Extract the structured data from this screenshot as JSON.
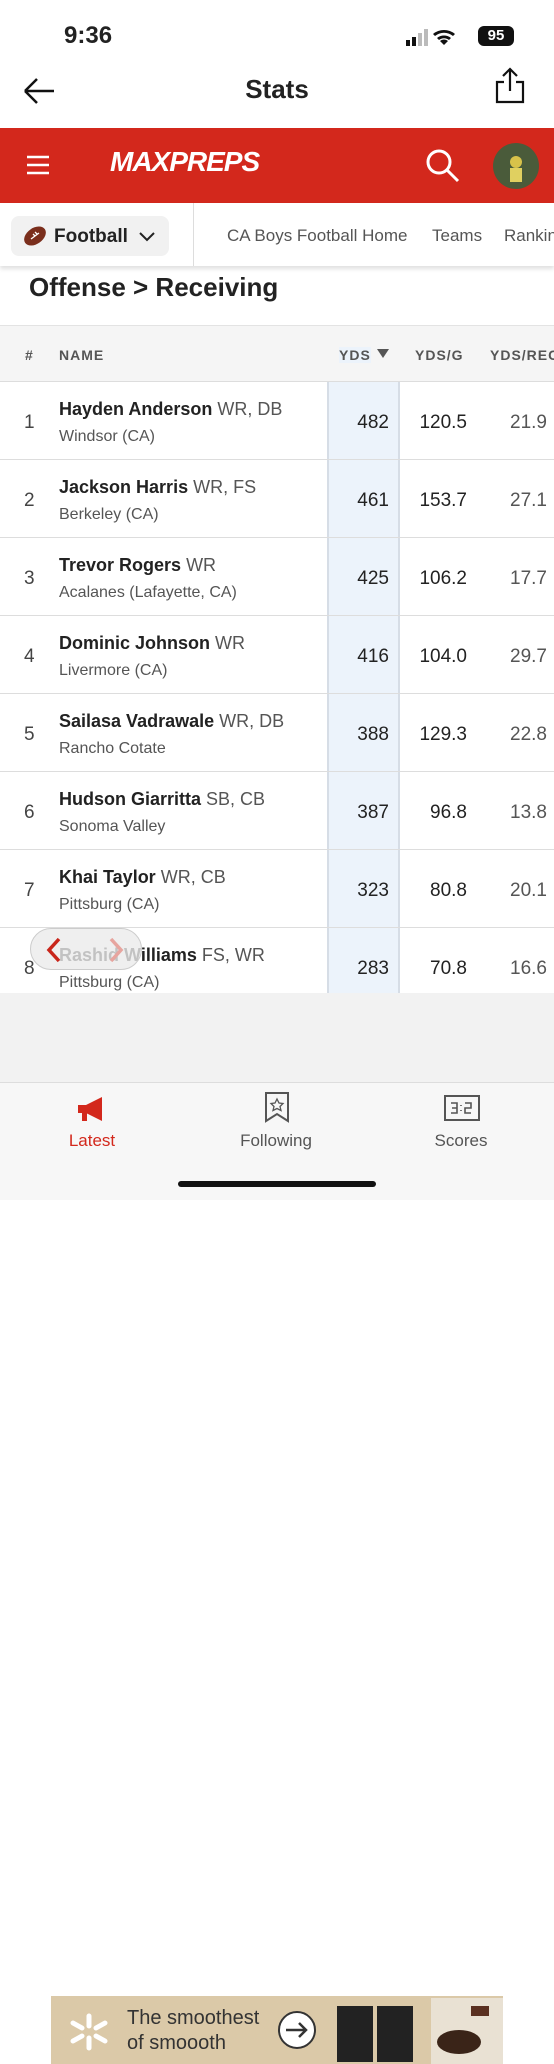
{
  "status": {
    "time": "9:36",
    "battery": "95"
  },
  "header": {
    "title": "Stats"
  },
  "brand": {
    "logo": "MAXPREPS"
  },
  "nav": {
    "sport": "Football",
    "links": [
      "CA Boys Football Home",
      "Teams",
      "Rankings"
    ]
  },
  "breadcrumb": "Offense > Receiving",
  "table": {
    "headers": [
      "#",
      "NAME",
      "YDS",
      "YDS/G",
      "YDS/REC"
    ],
    "rows": [
      [
        "1",
        "Hayden Anderson",
        "WR, DB",
        "Windsor (CA)",
        "482",
        "120.5",
        "21.9"
      ],
      [
        "2",
        "Jackson Harris",
        "WR, FS",
        "Berkeley (CA)",
        "461",
        "153.7",
        "27.1"
      ],
      [
        "3",
        "Trevor Rogers",
        "WR",
        "Acalanes (Lafayette, CA)",
        "425",
        "106.2",
        "17.7"
      ],
      [
        "4",
        "Dominic Johnson",
        "WR",
        "Livermore (CA)",
        "416",
        "104.0",
        "29.7"
      ],
      [
        "5",
        "Sailasa Vadrawale",
        "WR, DB",
        "Rancho Cotate",
        "388",
        "129.3",
        "22.8"
      ],
      [
        "6",
        "Hudson Giarritta",
        "SB, CB",
        "Sonoma Valley",
        "387",
        "96.8",
        "13.8"
      ],
      [
        "7",
        "Khai Taylor",
        "WR, CB",
        "Pittsburg (CA)",
        "323",
        "80.8",
        "20.1"
      ],
      [
        "8",
        "Rashid Williams",
        "FS, WR",
        "Pittsburg (CA)",
        "283",
        "70.8",
        "16.6"
      ]
    ]
  },
  "ad": {
    "text": "The smoothest of smoooth"
  },
  "tabs": [
    "Latest",
    "Following",
    "Scores"
  ]
}
